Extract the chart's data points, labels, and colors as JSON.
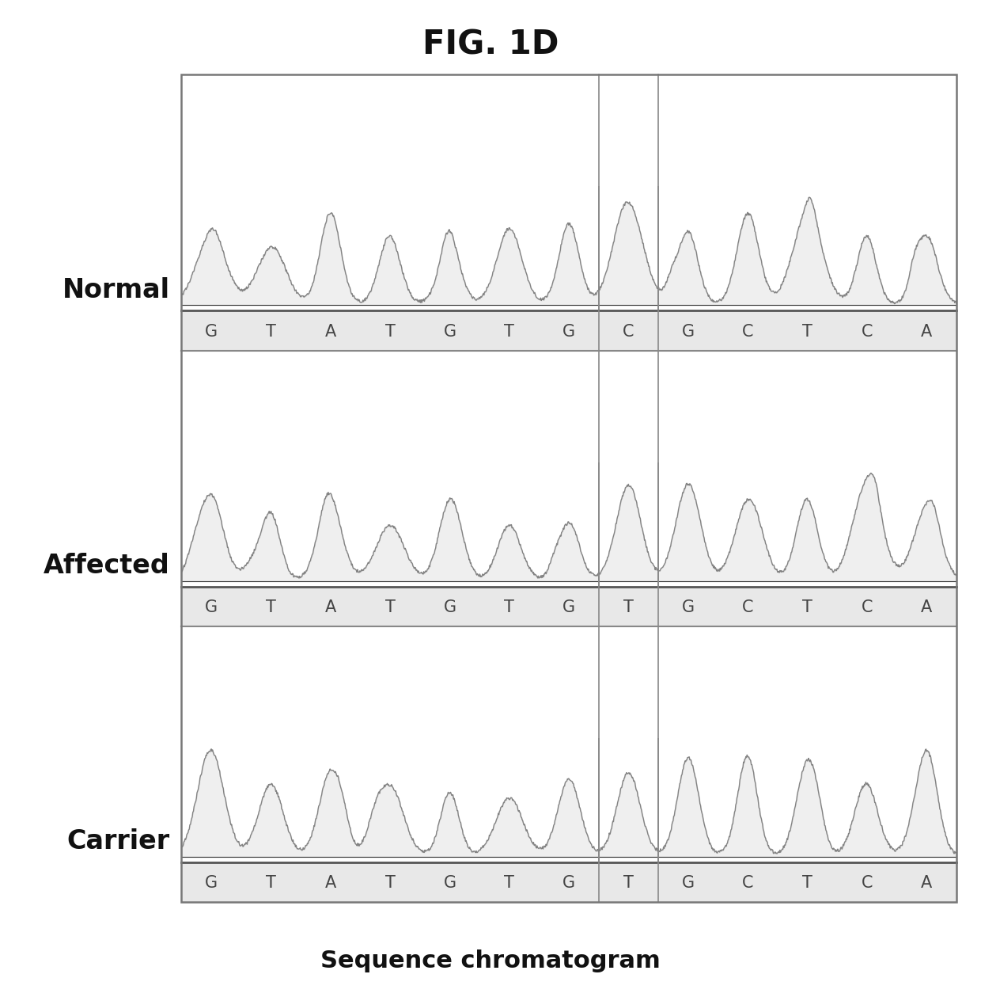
{
  "title": "FIG. 1D",
  "xlabel": "Sequence chromatogram",
  "rows": [
    "Normal",
    "Affected",
    "Carrier"
  ],
  "sequences": [
    [
      "G",
      "T",
      "A",
      "T",
      "G",
      "T",
      "G",
      "C",
      "G",
      "C",
      "T",
      "C",
      "A"
    ],
    [
      "G",
      "T",
      "A",
      "T",
      "G",
      "T",
      "G",
      "T",
      "G",
      "C",
      "T",
      "C",
      "A"
    ],
    [
      "G",
      "T",
      "A",
      "T",
      "G",
      "T",
      "G",
      "T",
      "G",
      "C",
      "T",
      "C",
      "A"
    ]
  ],
  "peak_color": "#777777",
  "bg_color": "#ffffff",
  "border_color": "#888888",
  "title_fontsize": 30,
  "row_label_fontsize": 24,
  "xlabel_fontsize": 22,
  "base_fontsize": 15,
  "n_bases": 13,
  "div_after_base1": 7,
  "div_after_base2": 8,
  "seeds": [
    42,
    99,
    77
  ]
}
